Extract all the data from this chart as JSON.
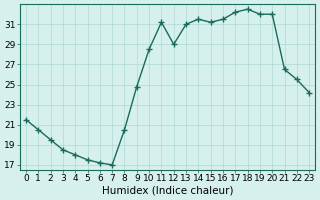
{
  "x": [
    0,
    1,
    2,
    3,
    4,
    5,
    6,
    7,
    8,
    9,
    10,
    11,
    12,
    13,
    14,
    15,
    16,
    17,
    18,
    19,
    20,
    21,
    22,
    23
  ],
  "y": [
    21.5,
    20.5,
    19.5,
    18.5,
    18.0,
    17.5,
    17.2,
    17.0,
    20.5,
    24.8,
    28.5,
    31.2,
    29.0,
    31.0,
    31.5,
    31.2,
    31.5,
    32.2,
    32.5,
    32.0,
    32.0,
    26.5,
    25.5,
    24.2
  ],
  "xlabel": "Humidex (Indice chaleur)",
  "yticks": [
    17,
    19,
    21,
    23,
    25,
    27,
    29,
    31
  ],
  "xticks": [
    0,
    1,
    2,
    3,
    4,
    5,
    6,
    7,
    8,
    9,
    10,
    11,
    12,
    13,
    14,
    15,
    16,
    17,
    18,
    19,
    20,
    21,
    22,
    23
  ],
  "ylim": [
    16.5,
    33
  ],
  "xlim": [
    -0.5,
    23.5
  ],
  "line_color": "#1a6b5a",
  "marker_color": "#1a6b5a",
  "bg_color": "#d6f0ee",
  "grid_color": "#b0d8d4",
  "spine_color": "#1a6b5a",
  "tick_label_fontsize": 6.5,
  "xlabel_fontsize": 7.5
}
